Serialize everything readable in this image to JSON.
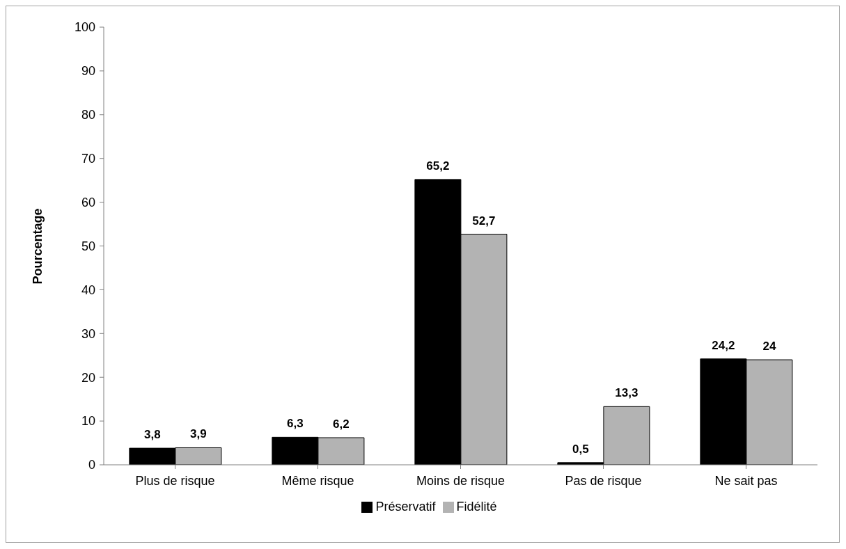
{
  "chart_data": {
    "type": "bar",
    "ylabel": "Pourcentage",
    "categories": [
      "Plus de risque",
      "Même risque",
      "Moins de risque",
      "Pas de risque",
      "Ne sait pas"
    ],
    "series": [
      {
        "name": "Préservatif",
        "color": "#000000",
        "values": [
          3.8,
          6.3,
          65.2,
          0.5,
          24.2
        ],
        "value_labels": [
          "3,8",
          "6,3",
          "65,2",
          "0,5",
          "24,2"
        ]
      },
      {
        "name": "Fidélité",
        "color": "#b3b3b3",
        "values": [
          3.9,
          6.2,
          52.7,
          13.3,
          24
        ],
        "value_labels": [
          "3,9",
          "6,2",
          "52,7",
          "13,3",
          "24"
        ]
      }
    ],
    "ylim": [
      0,
      100
    ],
    "yticks": [
      0,
      10,
      20,
      30,
      40,
      50,
      60,
      70,
      80,
      90,
      100
    ],
    "grid": false,
    "legend": "bottom"
  }
}
